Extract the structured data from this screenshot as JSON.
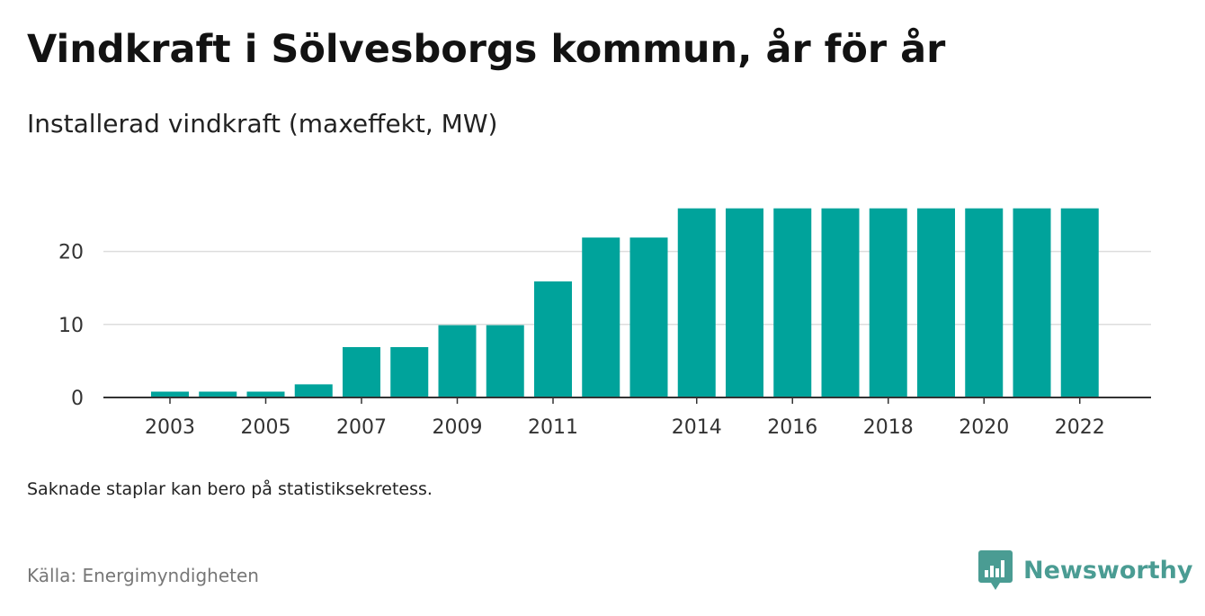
{
  "title": "Vindkraft i Sölvesborgs kommun, år för år",
  "subtitle": "Installerad vindkraft (maxeffekt, MW)",
  "note": "Saknade staplar kan bero på statistiksekretess.",
  "source": "Källa: Energimyndigheten",
  "brand": "Newsworthy",
  "colors": {
    "bar": "#00a39b",
    "grid": "#dddddd",
    "axis": "#333333",
    "brand": "#4a9c93"
  },
  "chart_data": {
    "type": "bar",
    "categories": [
      "2003",
      "2004",
      "2005",
      "2006",
      "2007",
      "2008",
      "2009",
      "2010",
      "2011",
      "2012",
      "2013",
      "2014",
      "2015",
      "2016",
      "2017",
      "2018",
      "2019",
      "2020",
      "2021",
      "2022"
    ],
    "values": [
      0.8,
      0.8,
      0.8,
      1.8,
      6.9,
      6.9,
      9.9,
      9.9,
      15.9,
      21.9,
      21.9,
      25.9,
      25.9,
      25.9,
      25.9,
      25.9,
      25.9,
      25.9,
      25.9,
      25.9
    ],
    "x_tick_labels": [
      "2003",
      "2005",
      "2007",
      "2009",
      "2011",
      "2014",
      "2016",
      "2018",
      "2020",
      "2022"
    ],
    "y_ticks": [
      0,
      10,
      20
    ],
    "ylim": [
      0,
      26
    ],
    "title": "Vindkraft i Sölvesborgs kommun, år för år",
    "xlabel": "",
    "ylabel": "",
    "grid": true,
    "legend": "none"
  }
}
